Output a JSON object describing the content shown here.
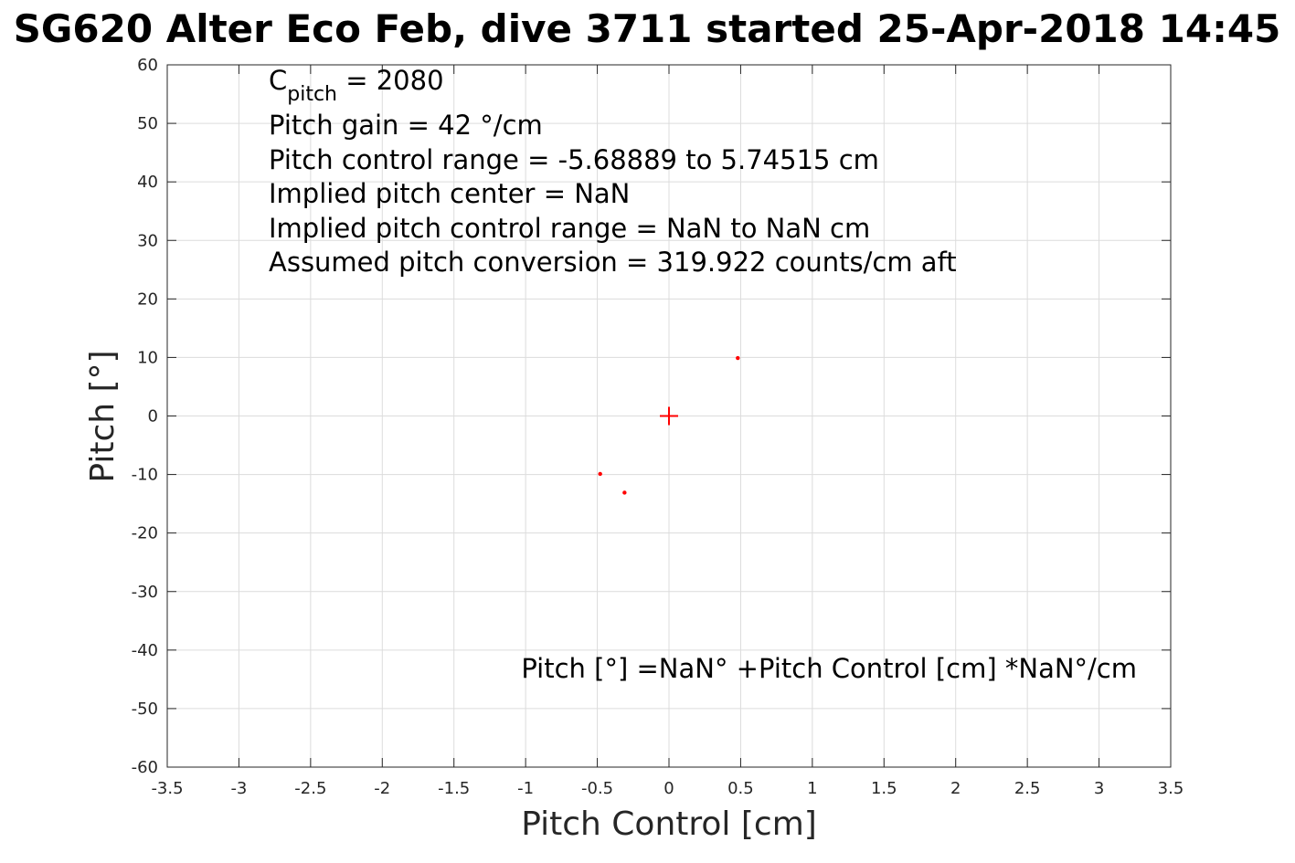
{
  "chart_data": {
    "type": "scatter",
    "title": "SG620 Alter Eco Feb, dive 3711 started 25-Apr-2018 14:45",
    "xlabel": "Pitch Control [cm]",
    "ylabel": "Pitch [°]",
    "xlim": [
      -3.5,
      3.5
    ],
    "ylim": [
      -60,
      60
    ],
    "xticks": [
      -3.5,
      -3,
      -2.5,
      -2,
      -1.5,
      -1,
      -0.5,
      0,
      0.5,
      1,
      1.5,
      2,
      2.5,
      3,
      3.5
    ],
    "xtick_labels": [
      "-3.5",
      "-3",
      "-2.5",
      "-2",
      "-1.5",
      "-1",
      "-0.5",
      "0",
      "0.5",
      "1",
      "1.5",
      "2",
      "2.5",
      "3",
      "3.5"
    ],
    "yticks": [
      60,
      50,
      40,
      30,
      20,
      10,
      0,
      -10,
      -20,
      -30,
      -40,
      -50,
      -60
    ],
    "ytick_labels": [
      "60",
      "50",
      "40",
      "30",
      "20",
      "10",
      "0",
      "-10",
      "-20",
      "-30",
      "-40",
      "-50",
      "-60"
    ],
    "grid": true,
    "color": "#ff0000",
    "series": [
      {
        "marker": "dot",
        "points": [
          {
            "x": 0.48,
            "y": 9.9
          },
          {
            "x": -0.48,
            "y": -9.9
          },
          {
            "x": -0.31,
            "y": -13.1
          }
        ]
      },
      {
        "marker": "plus",
        "points": [
          {
            "x": 0,
            "y": 0
          }
        ]
      }
    ],
    "annotations": {
      "c_pitch_symbol": "C",
      "c_pitch_subscript": "pitch",
      "c_pitch_value": " = 2080",
      "lines": [
        "Pitch gain = 42 °/cm",
        "Pitch control range = -5.68889 to 5.74515 cm",
        "Implied pitch center = NaN",
        "Implied pitch control range = NaN to NaN cm",
        "Assumed pitch conversion = 319.922 counts/cm aft"
      ],
      "equation": "Pitch [°] =NaN° +Pitch Control [cm] *NaN°/cm"
    }
  }
}
